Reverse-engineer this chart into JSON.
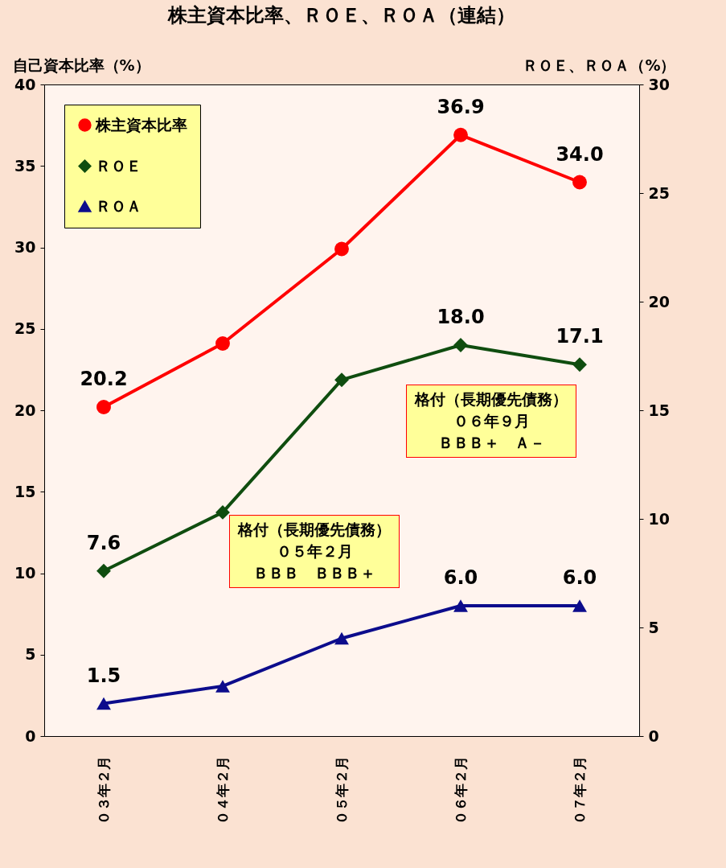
{
  "chart_data": {
    "type": "line",
    "title": "株主資本比率、ＲＯＥ、ＲＯＡ（連結）",
    "ylabel": "自己資本比率（%）",
    "y2label": "ＲＯＥ、ＲＯＡ（%）",
    "categories": [
      "０３年２月",
      "０４年２月",
      "０５年２月",
      "０６年２月",
      "０７年２月"
    ],
    "series": [
      {
        "name": "株主資本比率",
        "color": "#ff0000",
        "marker": "circle",
        "values": [
          20.2,
          24.1,
          29.9,
          36.9,
          34.0
        ],
        "value_labels": [
          "20.2",
          null,
          null,
          "36.9",
          "34.0"
        ]
      },
      {
        "name": "ＲＯＥ",
        "color": "#0f4d0f",
        "marker": "diamond",
        "axis": "y2",
        "values": [
          7.6,
          10.3,
          16.4,
          18.0,
          17.1
        ],
        "value_labels": [
          "7.6",
          null,
          null,
          "18.0",
          "17.1"
        ]
      },
      {
        "name": "ＲＯＡ",
        "color": "#0c0c8c",
        "marker": "triangle",
        "axis": "y2",
        "values": [
          1.5,
          2.3,
          4.5,
          6.0,
          6.0
        ],
        "value_labels": [
          "1.5",
          null,
          null,
          "6.0",
          "6.0"
        ]
      }
    ],
    "ylim": [
      0,
      40
    ],
    "yticks": [
      0,
      5,
      10,
      15,
      20,
      25,
      30,
      35,
      40
    ],
    "y2lim": [
      0,
      30
    ],
    "y2ticks": [
      0,
      5,
      10,
      15,
      20,
      25,
      30
    ],
    "grid": false,
    "legend": "top left",
    "annotations": [
      "格付（長期優先債務）",
      "０５年２月",
      "ＢＢＢ　ＢＢＢ＋",
      "格付（長期優先債務）",
      "０６年９月",
      "ＢＢＢ＋　Ａ－"
    ]
  }
}
